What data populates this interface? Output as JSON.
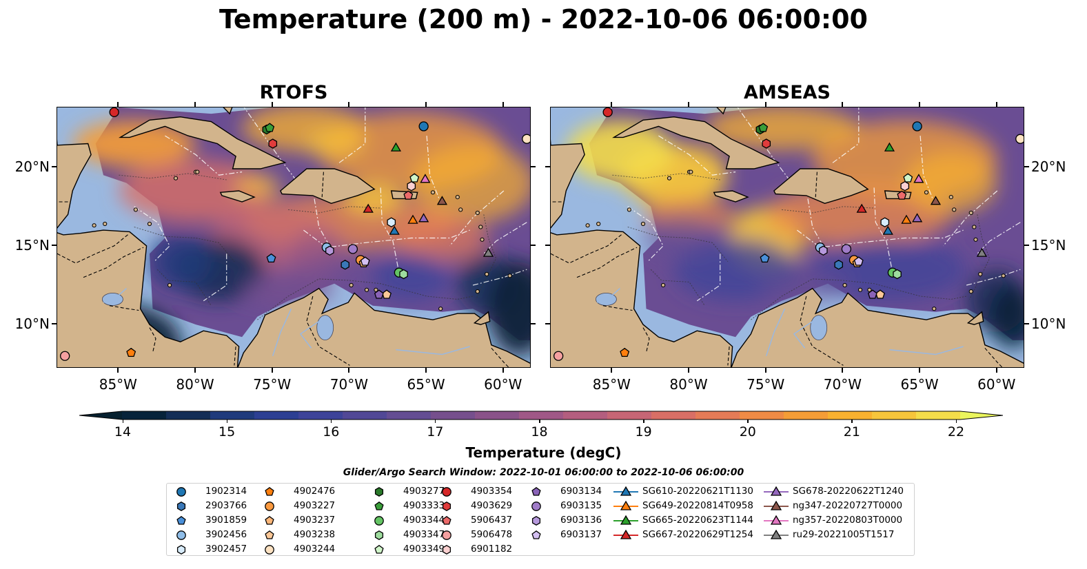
{
  "title": "Temperature (200 m) - 2022-10-06 06:00:00",
  "panels": [
    {
      "name": "RTOFS",
      "variant": "rtofs"
    },
    {
      "name": "AMSEAS",
      "variant": "amseas"
    }
  ],
  "longitude_labels": [
    "85°W",
    "80°W",
    "75°W",
    "70°W",
    "65°W",
    "60°W"
  ],
  "latitude_labels": [
    "20°N",
    "15°N",
    "10°N"
  ],
  "colorbar": {
    "label": "Temperature (degC)",
    "ticks": [
      "14",
      "15",
      "16",
      "17",
      "18",
      "19",
      "20",
      "21",
      "22"
    ],
    "colors": [
      "#07233a",
      "#142e56",
      "#1f3a7c",
      "#2c3f93",
      "#3d4399",
      "#514896",
      "#644d93",
      "#764f8d",
      "#8a5289",
      "#a05887",
      "#b45e7f",
      "#c76675",
      "#d96f66",
      "#e57b57",
      "#ef8b45",
      "#f59d36",
      "#f8b12f",
      "#f6c53b",
      "#f4dd4a"
    ],
    "under_color": "#06202f",
    "over_color": "#eaf55d"
  },
  "map_colors": {
    "land": "#d2b48c",
    "shallow": "#9ab8e0",
    "ocean_base": "#6a4d93"
  },
  "search_window": "Glider/Argo Search Window: 2022-10-01 06:00:00 to 2022-10-06 06:00:00",
  "legend": {
    "columns": [
      [
        {
          "label": "1902314",
          "marker": "circle",
          "color": "#1f77b4"
        },
        {
          "label": "2903766",
          "marker": "hexagon",
          "color": "#3a78b8"
        },
        {
          "label": "3901859",
          "marker": "pentagon",
          "color": "#4a90d9"
        },
        {
          "label": "3902456",
          "marker": "circle",
          "color": "#8fbde8"
        },
        {
          "label": "3902457",
          "marker": "hexagon",
          "color": "#d8ecfb"
        }
      ],
      [
        {
          "label": "4902476",
          "marker": "pentagon",
          "color": "#ff7f0e"
        },
        {
          "label": "4903227",
          "marker": "circle",
          "color": "#fb9a40"
        },
        {
          "label": "4903237",
          "marker": "pentagon",
          "color": "#fbb679"
        },
        {
          "label": "4903238",
          "marker": "pentagon",
          "color": "#fcc897"
        },
        {
          "label": "4903244",
          "marker": "circle",
          "color": "#fde2c2"
        }
      ],
      [
        {
          "label": "4903277",
          "marker": "hexagon",
          "color": "#2a7a2a"
        },
        {
          "label": "4903333",
          "marker": "pentagon",
          "color": "#3a9e3a"
        },
        {
          "label": "4903344",
          "marker": "circle",
          "color": "#64c464"
        },
        {
          "label": "4903347",
          "marker": "hexagon",
          "color": "#9edc9e"
        },
        {
          "label": "4903349",
          "marker": "pentagon",
          "color": "#d0f5c9"
        }
      ],
      [
        {
          "label": "4903354",
          "marker": "circle",
          "color": "#d62728"
        },
        {
          "label": "4903629",
          "marker": "hexagon",
          "color": "#e03c3c"
        },
        {
          "label": "5906437",
          "marker": "pentagon",
          "color": "#ec6a6a"
        },
        {
          "label": "5906478",
          "marker": "circle",
          "color": "#f5a0a0"
        },
        {
          "label": "6901182",
          "marker": "hexagon",
          "color": "#fbd0d0"
        }
      ],
      [
        {
          "label": "6903134",
          "marker": "pentagon",
          "color": "#8a63b8"
        },
        {
          "label": "6903135",
          "marker": "circle",
          "color": "#a07cc8"
        },
        {
          "label": "6903136",
          "marker": "hexagon",
          "color": "#b699dc"
        },
        {
          "label": "6903137",
          "marker": "pentagon",
          "color": "#d4c0f2"
        }
      ],
      [
        {
          "label": "SG610-20220621T1130",
          "marker": "triangle",
          "color": "#1f77b4"
        },
        {
          "label": "SG649-20220814T0958",
          "marker": "triangle",
          "color": "#ff7f0e"
        },
        {
          "label": "SG665-20220623T1144",
          "marker": "triangle",
          "color": "#2ca02c"
        },
        {
          "label": "SG667-20220629T1254",
          "marker": "triangle",
          "color": "#d62728"
        }
      ],
      [
        {
          "label": "SG678-20220622T1240",
          "marker": "triangle",
          "color": "#9467bd"
        },
        {
          "label": "ng347-20220727T0000",
          "marker": "triangle",
          "color": "#8c564b"
        },
        {
          "label": "ng357-20220803T0000",
          "marker": "triangle",
          "color": "#e377c2"
        },
        {
          "label": "ru29-20221005T1517",
          "marker": "triangle",
          "color": "#7f7f7f"
        }
      ]
    ]
  },
  "observations": [
    {
      "id": "1902314",
      "lon": -65.2,
      "lat": 22.6
    },
    {
      "id": "2903766",
      "lon": -70.3,
      "lat": 13.8
    },
    {
      "id": "3901859",
      "lon": -75.1,
      "lat": 14.2
    },
    {
      "id": "3902456",
      "lon": -71.5,
      "lat": 14.9
    },
    {
      "id": "3902457",
      "lon": -67.3,
      "lat": 16.5
    },
    {
      "id": "4902476",
      "lon": -84.2,
      "lat": 8.2
    },
    {
      "id": "4903227",
      "lon": -69.3,
      "lat": 14.1
    },
    {
      "id": "4903237",
      "lon": -69.1,
      "lat": 13.9
    },
    {
      "id": "4903238",
      "lon": -67.6,
      "lat": 11.9
    },
    {
      "id": "4903244",
      "lon": -58.5,
      "lat": 21.8
    },
    {
      "id": "4903277",
      "lon": -75.4,
      "lat": 22.4
    },
    {
      "id": "4903333",
      "lon": -75.2,
      "lat": 22.5
    },
    {
      "id": "4903344",
      "lon": -66.8,
      "lat": 13.3
    },
    {
      "id": "4903347",
      "lon": -66.5,
      "lat": 13.2
    },
    {
      "id": "4903349",
      "lon": -65.8,
      "lat": 19.3
    },
    {
      "id": "4903354",
      "lon": -85.3,
      "lat": 23.5
    },
    {
      "id": "4903629",
      "lon": -75.0,
      "lat": 21.5
    },
    {
      "id": "5906437",
      "lon": -66.2,
      "lat": 18.2
    },
    {
      "id": "5906478",
      "lon": -88.5,
      "lat": 8.0
    },
    {
      "id": "6901182",
      "lon": -66.0,
      "lat": 18.8
    },
    {
      "id": "6903134",
      "lon": -68.1,
      "lat": 11.9
    },
    {
      "id": "6903135",
      "lon": -69.8,
      "lat": 14.8
    },
    {
      "id": "6903136",
      "lon": -71.3,
      "lat": 14.7
    },
    {
      "id": "6903137",
      "lon": -69.0,
      "lat": 14.0
    },
    {
      "id": "SG610-20220621T1130",
      "lon": -67.1,
      "lat": 15.9
    },
    {
      "id": "SG649-20220814T0958",
      "lon": -65.9,
      "lat": 16.6
    },
    {
      "id": "SG665-20220623T1144",
      "lon": -67.0,
      "lat": 21.2
    },
    {
      "id": "SG667-20220629T1254",
      "lon": -68.8,
      "lat": 17.3
    },
    {
      "id": "SG678-20220622T1240",
      "lon": -65.2,
      "lat": 16.7
    },
    {
      "id": "ng347-20220727T0000",
      "lon": -64.0,
      "lat": 17.8
    },
    {
      "id": "ng357-20220803T0000",
      "lon": -65.1,
      "lat": 19.2
    },
    {
      "id": "ru29-20221005T1517",
      "lon": -61.0,
      "lat": 14.5
    }
  ]
}
